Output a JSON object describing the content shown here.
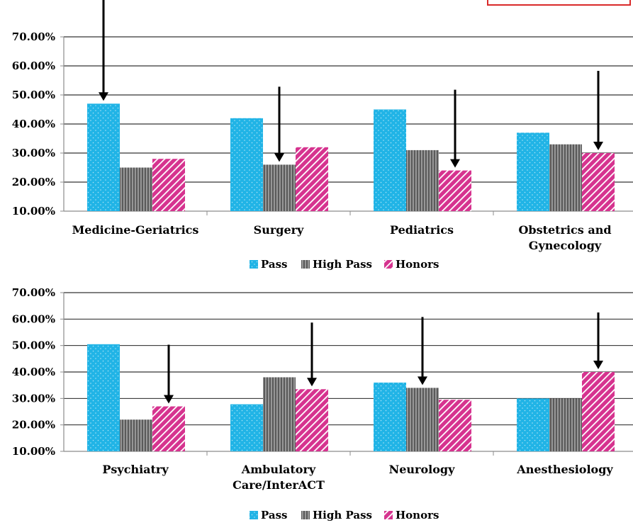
{
  "colors": {
    "pass": "#21b4e6",
    "high_pass": "#7a7a7a",
    "honors": "#d6338f",
    "axis": "#8c8c8c",
    "arrow": "#000000",
    "callout_border": "#d92a2a"
  },
  "chart_data": [
    {
      "type": "bar",
      "categories": [
        [
          "Medicine-Geriatrics"
        ],
        [
          "Surgery"
        ],
        [
          "Pediatrics"
        ],
        [
          "Obstetrics and",
          "Gynecology"
        ]
      ],
      "series": [
        {
          "name": "Pass",
          "values": [
            47,
            42,
            45,
            37
          ]
        },
        {
          "name": "High Pass",
          "values": [
            25,
            26,
            31,
            33
          ]
        },
        {
          "name": "Honors",
          "values": [
            28,
            32,
            24,
            30
          ]
        }
      ],
      "yticks": [
        "10.00%",
        "20.00%",
        "30.00%",
        "40.00%",
        "50.00%",
        "60.00%",
        "70.00%"
      ],
      "ylim": [
        10,
        70
      ],
      "grid": true,
      "legend": "bottom",
      "annotations": [
        {
          "type": "arrow",
          "category": 0,
          "series": 0
        },
        {
          "type": "arrow",
          "category": 1,
          "series": 1
        },
        {
          "type": "arrow",
          "category": 2,
          "series": 2
        },
        {
          "type": "arrow",
          "category": 3,
          "series": 2
        }
      ]
    },
    {
      "type": "bar",
      "categories": [
        [
          "Psychiatry"
        ],
        [
          "Ambulatory",
          "Care/InterACT"
        ],
        [
          "Neurology"
        ],
        [
          "Anesthesiology"
        ]
      ],
      "series": [
        {
          "name": "Pass",
          "values": [
            50.5,
            27.8,
            36,
            30
          ]
        },
        {
          "name": "High Pass",
          "values": [
            22,
            38,
            34,
            30
          ]
        },
        {
          "name": "Honors",
          "values": [
            27,
            33.5,
            29.5,
            40
          ]
        }
      ],
      "yticks": [
        "10.00%",
        "20.00%",
        "30.00%",
        "40.00%",
        "50.00%",
        "60.00%",
        "70.00%"
      ],
      "ylim": [
        10,
        70
      ],
      "grid": true,
      "legend": "bottom",
      "annotations": [
        {
          "type": "arrow",
          "category": 0,
          "series": 2
        },
        {
          "type": "arrow",
          "category": 1,
          "series": 2
        },
        {
          "type": "arrow",
          "category": 2,
          "series": 1
        },
        {
          "type": "arrow",
          "category": 3,
          "series": 2
        }
      ]
    }
  ]
}
